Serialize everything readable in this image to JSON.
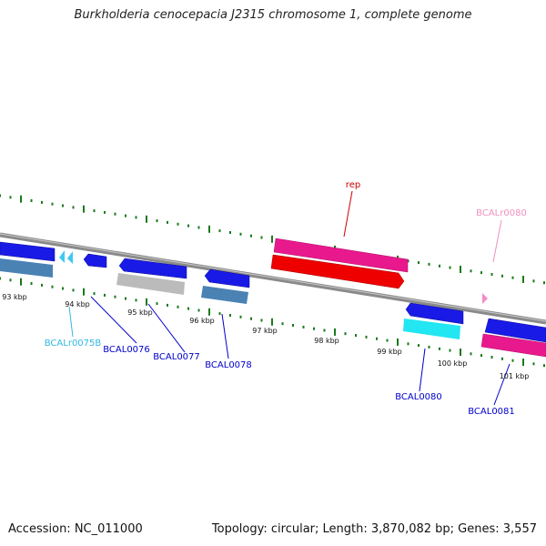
{
  "title": "Burkholderia cenocepacia J2315 chromosome 1, complete genome",
  "footer": {
    "accession": "Accession: NC_011000",
    "stats": "Topology: circular; Length: 3,870,082 bp; Genes: 3,557"
  },
  "colors": {
    "backbone": "#8a8a8a",
    "tick": "#1a7a1a",
    "kbp_text": "#111111",
    "blue": "#1a1ae6",
    "steel": "#4a82b4",
    "gray": "#bbbbbb",
    "magenta": "#e8198c",
    "red": "#ee0000",
    "cyan": "#22e6f2",
    "light_cyan": "#40c8f0",
    "pink": "#f48cc8",
    "label_blue": "#0000cc",
    "label_cyan": "#30b8e0",
    "label_red": "#cc0000",
    "label_pink": "#f090c0"
  },
  "kbp_labels": [
    "93 kbp",
    "94 kbp",
    "95 kbp",
    "96 kbp",
    "97 kbp",
    "98 kbp",
    "99 kbp",
    "100 kbp",
    "101 kbp"
  ],
  "gene_labels": {
    "rep": "rep",
    "bcalr0080": "BCALr0080",
    "bcalr0075b": "BCALr0075B",
    "bcal0076": "BCAL0076",
    "bcal0077": "BCAL0077",
    "bcal0078": "BCAL0078",
    "bcal0080": "BCAL0080",
    "bcal0081": "BCAL0081"
  }
}
